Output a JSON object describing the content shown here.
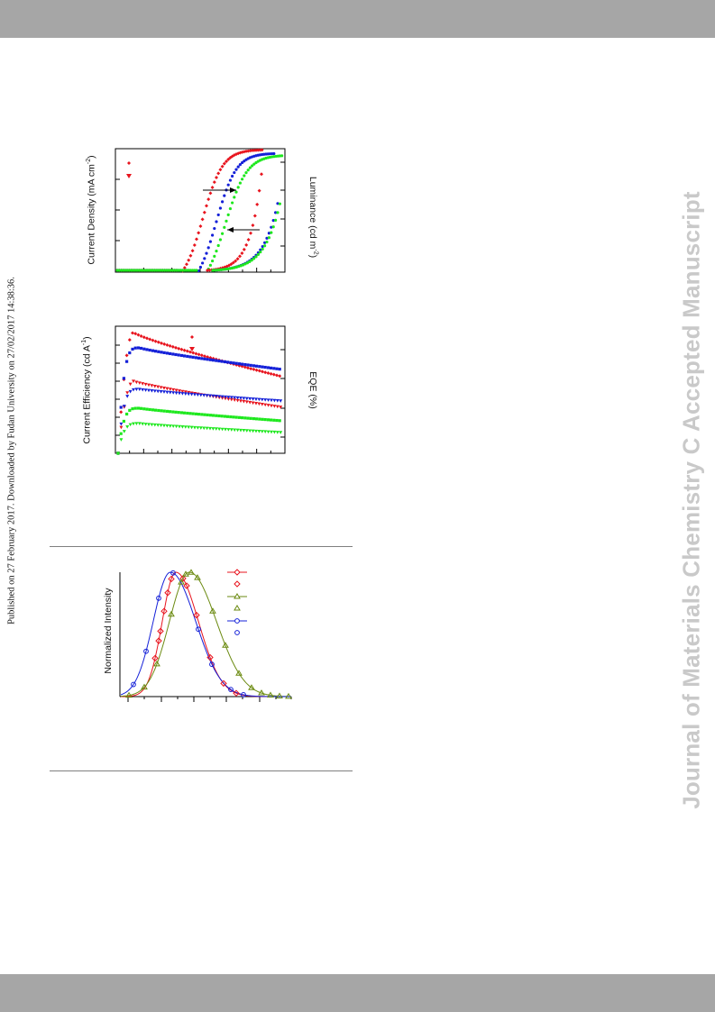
{
  "watermark": "Journal of Materials Chemistry C Accepted Manuscript",
  "published_note": "Published on 27 February 2017. Downloaded by Fudan University on 27/02/2017 14:38:36.",
  "figures": {
    "jvl": {
      "left_axis_label": "Current Density (mA cm",
      "left_axis_sup": "-2",
      "left_axis_tail": ")",
      "right_axis_label": "Luminance (cd m",
      "right_axis_sup": "-2",
      "right_axis_tail": ")"
    },
    "efficiency": {
      "left_axis_label": "Current Efficiency (cd A",
      "left_axis_sup": "-1",
      "left_axis_tail": ")",
      "right_axis_label": "EQE (%)"
    },
    "spectra": {
      "y_axis_label": "Normalized Intensity"
    }
  },
  "colors": {
    "red": "#e8141e",
    "blue": "#1420d8",
    "green": "#1ee81e",
    "olive": "#6b8a10",
    "band": "#a6a6a6",
    "watermark": "#c9c9c9"
  }
}
